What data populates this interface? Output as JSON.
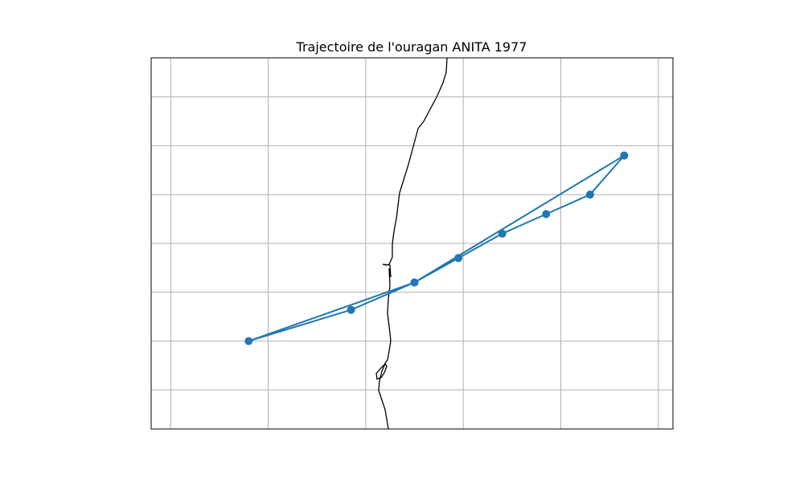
{
  "title": "Trajectoire de l'ouragan ANITA 1977",
  "map": {
    "projection": "PlateCarree",
    "extent": {
      "lon": [
        -100.2,
        -94.85
      ],
      "lat": [
        21.6,
        25.4
      ]
    },
    "gridlines": true,
    "coastline": true,
    "colors": {
      "track": "#1f77b4",
      "coastline": "#000000",
      "grid": "#b0b0b0",
      "frame": "#000000"
    }
  },
  "chart_data": {
    "type": "line",
    "series": [
      {
        "lon": [
          -95.35,
          -95.7,
          -96.15,
          -96.6,
          -97.05,
          -97.5,
          -98.15,
          -99.2,
          -97.5,
          -95.35
        ],
        "lat": [
          24.4,
          24.0,
          23.8,
          23.6,
          23.35,
          23.1,
          22.82,
          22.5,
          23.1,
          24.4
        ]
      }
    ],
    "grid_lon": [
      -100,
      -99,
      -98,
      -97,
      -96,
      -95
    ],
    "grid_lat": [
      22,
      22.5,
      23,
      23.5,
      24,
      24.5,
      25
    ]
  }
}
